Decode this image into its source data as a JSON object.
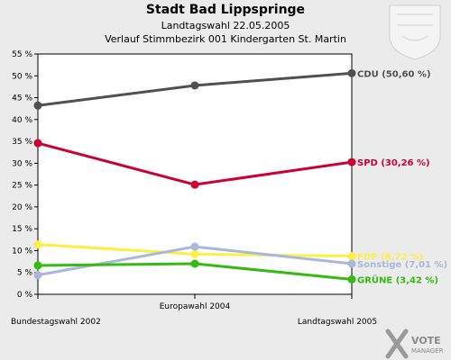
{
  "header": {
    "title": "Stadt Bad Lippspringe",
    "subtitle1": "Landtagswahl 22.05.2005",
    "subtitle2": "Verlauf Stimmbezirk 001 Kindergarten St. Martin"
  },
  "logo": {
    "name": "VOTE",
    "sub": "MANAGER"
  },
  "chart_data": {
    "type": "line",
    "categories": [
      "Bundestagswahl 2002",
      "Europawahl 2004",
      "Landtagswahl 2005"
    ],
    "ylim": [
      0,
      55
    ],
    "yticks": [
      "0 %",
      "5 %",
      "10 %",
      "15 %",
      "20 %",
      "25 %",
      "30 %",
      "35 %",
      "40 %",
      "45 %",
      "50 %",
      "55 %"
    ],
    "grid": false,
    "series": [
      {
        "name": "CDU",
        "label": "CDU (50,60 %)",
        "color": "#505050",
        "values": [
          43.2,
          47.8,
          50.6
        ]
      },
      {
        "name": "SPD",
        "label": "SPD (30,26 %)",
        "color": "#cc0033",
        "values": [
          34.6,
          25.1,
          30.26
        ]
      },
      {
        "name": "FDP",
        "label": "FDP (8,72 %)",
        "color": "#ffee44",
        "values": [
          11.4,
          9.2,
          8.72
        ]
      },
      {
        "name": "Sonstige",
        "label": "Sonstige (7,01 %)",
        "color": "#a8b8dc",
        "values": [
          4.4,
          10.9,
          7.01
        ]
      },
      {
        "name": "GRÜNE",
        "label": "GRÜNE (3,42 %)",
        "color": "#33bb11",
        "values": [
          6.6,
          7.0,
          3.42
        ]
      }
    ]
  }
}
